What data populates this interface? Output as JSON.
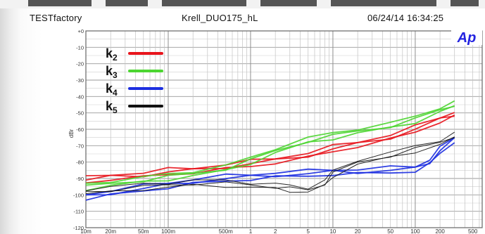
{
  "header": {
    "vendor": "TESTfactory",
    "device": "Krell_DUO175_hL",
    "timestamp": "06/24/14 16:34:25",
    "logo": "Ap"
  },
  "chart_data": {
    "type": "line",
    "title": "",
    "xlabel": "",
    "ylabel": "dBr",
    "x_scale": "log",
    "xlim": [
      0.01,
      650
    ],
    "ylim": [
      -120,
      0
    ],
    "y_ticks": [
      0,
      -10,
      -20,
      -30,
      -40,
      -50,
      -60,
      -70,
      -80,
      -90,
      -100,
      -110,
      -120
    ],
    "y_tick_labels": [
      "+0",
      "-10",
      "-20",
      "-30",
      "-40",
      "-50",
      "-60",
      "-70",
      "-80",
      "-90",
      "-100",
      "-110",
      "-120"
    ],
    "x_ticks": [
      0.01,
      0.02,
      0.05,
      0.1,
      0.5,
      1,
      2,
      5,
      10,
      20,
      50,
      100,
      200,
      500
    ],
    "x_tick_labels": [
      "10m",
      "20m",
      "50m",
      "100m",
      "500m",
      "1",
      "2",
      "5",
      "10",
      "20",
      "50",
      "100",
      "200",
      "500"
    ],
    "grid": true,
    "legend_position": "top-left",
    "series": [
      {
        "name": "k2",
        "color": "#e8141c",
        "x": [
          0.01,
          0.02,
          0.05,
          0.1,
          0.2,
          0.5,
          1,
          2,
          5,
          10,
          20,
          50,
          100,
          200,
          300
        ],
        "y": [
          -91,
          -89,
          -88,
          -86,
          -85,
          -83,
          -81,
          -79,
          -76,
          -72,
          -69,
          -65,
          -60,
          -54,
          -51
        ]
      },
      {
        "name": "k3",
        "color": "#4cd531",
        "x": [
          0.01,
          0.02,
          0.05,
          0.1,
          0.2,
          0.5,
          1,
          2,
          5,
          10,
          20,
          50,
          100,
          200,
          300
        ],
        "y": [
          -95,
          -93,
          -91,
          -89,
          -87,
          -84,
          -79,
          -73,
          -67,
          -64,
          -61,
          -58,
          -54,
          -48,
          -45
        ]
      },
      {
        "name": "k4",
        "color": "#1c2ee0",
        "x": [
          0.01,
          0.02,
          0.05,
          0.1,
          0.2,
          0.5,
          1,
          2,
          5,
          10,
          20,
          50,
          100,
          150,
          200,
          300
        ],
        "y": [
          -101,
          -99,
          -96,
          -94,
          -92,
          -90,
          -89,
          -88,
          -87,
          -86,
          -86,
          -85,
          -84,
          -80,
          -73,
          -66
        ]
      },
      {
        "name": "k5",
        "color": "#111111",
        "x": [
          0.01,
          0.02,
          0.05,
          0.1,
          0.2,
          0.5,
          1,
          2,
          3,
          5,
          8,
          10,
          20,
          50,
          100,
          200,
          300
        ],
        "y": [
          -98,
          -97,
          -95,
          -94,
          -93,
          -93,
          -94,
          -95,
          -96,
          -97,
          -93,
          -87,
          -80,
          -76,
          -72,
          -68,
          -64
        ]
      }
    ]
  }
}
